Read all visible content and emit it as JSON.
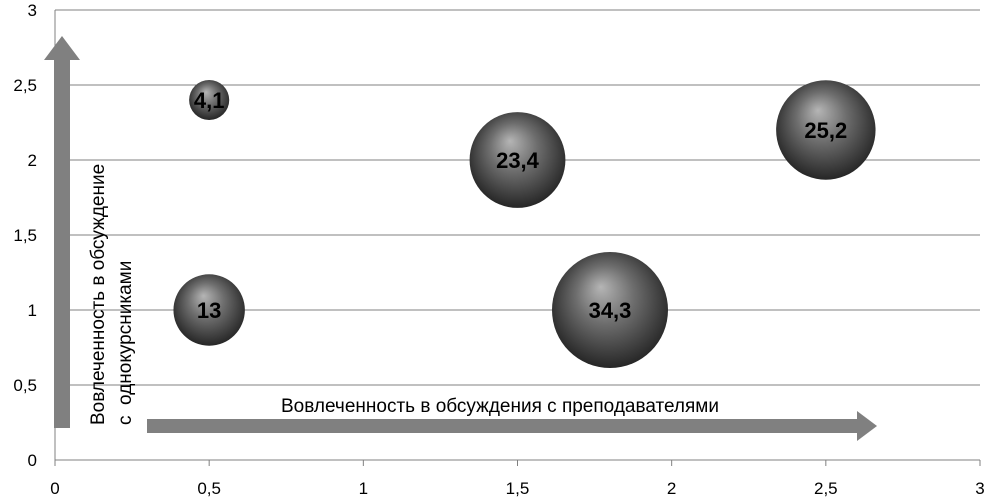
{
  "chart_data": {
    "type": "bubble",
    "x_range": [
      0,
      3
    ],
    "y_range": [
      0,
      3
    ],
    "x_ticks": [
      "0",
      "0,5",
      "1",
      "1,5",
      "2",
      "2,5",
      "3"
    ],
    "y_ticks": [
      "0",
      "0,5",
      "1",
      "1,5",
      "2",
      "2,5",
      "3"
    ],
    "grid": "horizontal",
    "points": [
      {
        "x": 0.5,
        "y": 2.4,
        "size": 4.1,
        "label": "4,1"
      },
      {
        "x": 1.5,
        "y": 2.0,
        "size": 23.4,
        "label": "23,4"
      },
      {
        "x": 2.5,
        "y": 2.2,
        "size": 25.2,
        "label": "25,2"
      },
      {
        "x": 0.5,
        "y": 1.0,
        "size": 13,
        "label": "13"
      },
      {
        "x": 1.8,
        "y": 1.0,
        "size": 34.3,
        "label": "34,3"
      }
    ],
    "x_title": "Вовлеченность в обсуждения с преподавателями",
    "y_title_line1": "Вовлеченность в обсуждение",
    "y_title_line2": "с  однокурсниками",
    "colors": {
      "bubble_light": "#9a9a9a",
      "bubble_dark": "#2a2a2a",
      "arrow": "#808080",
      "grid": "#808080"
    }
  }
}
